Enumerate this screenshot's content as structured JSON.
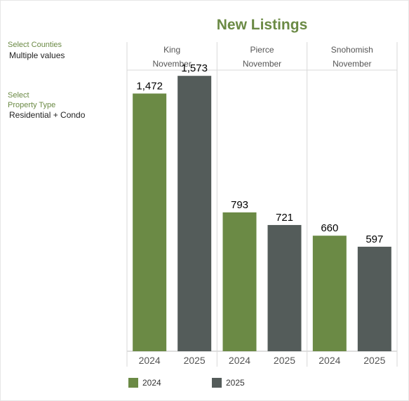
{
  "title": "New Listings",
  "filters": {
    "counties_label": "Select Counties",
    "counties_value": "Multiple values",
    "type_label_line1": "Select",
    "type_label_line2": "Property Type",
    "type_value": "Residential + Condo"
  },
  "colors": {
    "2024": "#6b8a45",
    "2025": "#545c5a"
  },
  "chart_data": {
    "type": "bar",
    "title": "New Listings",
    "month": "November",
    "categories": [
      "King",
      "Pierce",
      "Snohomish"
    ],
    "series": [
      {
        "name": "2024",
        "values": [
          1472,
          793,
          660
        ],
        "labels": [
          "1,472",
          "793",
          "660"
        ]
      },
      {
        "name": "2025",
        "values": [
          1573,
          721,
          597
        ],
        "labels": [
          "1,573",
          "721",
          "597"
        ]
      }
    ],
    "ylim": [
      0,
      1750
    ],
    "legend": "bottom"
  }
}
